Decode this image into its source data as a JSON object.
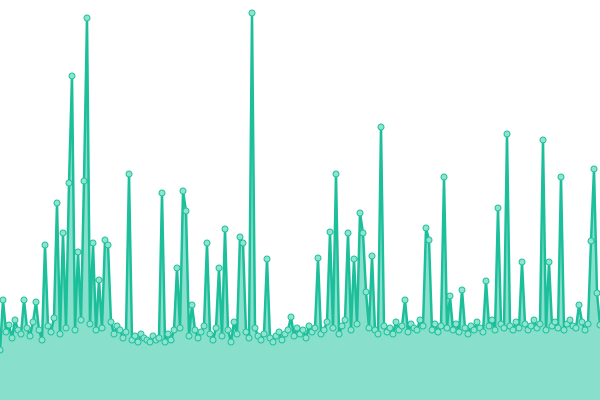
{
  "chart_data": {
    "type": "area",
    "title": "",
    "xlabel": "",
    "ylabel": "",
    "grid": false,
    "legend": "none",
    "markers": true,
    "ylim": [
      0,
      400
    ],
    "colors": {
      "line": "#1dbf9b",
      "fill": "#88e0cc",
      "marker_fill": "#8fe4d0",
      "marker_stroke": "#1dbf9b"
    },
    "series": [
      {
        "values": [
          50,
          100,
          68,
          75,
          62,
          80,
          70,
          66,
          100,
          72,
          64,
          78,
          98,
          70,
          60,
          155,
          74,
          68,
          82,
          197,
          66,
          167,
          72,
          217,
          324,
          70,
          148,
          80,
          219,
          382,
          76,
          157,
          70,
          120,
          72,
          160,
          155,
          78,
          66,
          74,
          70,
          62,
          68,
          226,
          60,
          64,
          58,
          66,
          62,
          60,
          58,
          64,
          60,
          62,
          207,
          58,
          66,
          60,
          70,
          132,
          72,
          209,
          189,
          64,
          95,
          70,
          62,
          68,
          74,
          157,
          66,
          60,
          72,
          132,
          64,
          171,
          70,
          58,
          78,
          66,
          163,
          157,
          68,
          62,
          387,
          72,
          64,
          60,
          66,
          141,
          62,
          58,
          64,
          68,
          60,
          66,
          70,
          83,
          64,
          72,
          66,
          70,
          62,
          74,
          68,
          72,
          142,
          66,
          70,
          78,
          168,
          72,
          226,
          66,
          74,
          80,
          167,
          70,
          141,
          76,
          187,
          167,
          108,
          72,
          144,
          70,
          66,
          273,
          74,
          68,
          72,
          66,
          78,
          70,
          74,
          100,
          68,
          76,
          72,
          70,
          80,
          74,
          172,
          160,
          70,
          76,
          68,
          74,
          223,
          72,
          104,
          70,
          76,
          68,
          110,
          72,
          66,
          74,
          70,
          78,
          72,
          68,
          119,
          74,
          80,
          70,
          192,
          76,
          72,
          266,
          74,
          70,
          78,
          72,
          138,
          76,
          70,
          74,
          80,
          72,
          76,
          260,
          70,
          138,
          74,
          78,
          72,
          223,
          70,
          76,
          80,
          74,
          72,
          95,
          78,
          70,
          76,
          159,
          231,
          107,
          75
        ]
      }
    ]
  }
}
